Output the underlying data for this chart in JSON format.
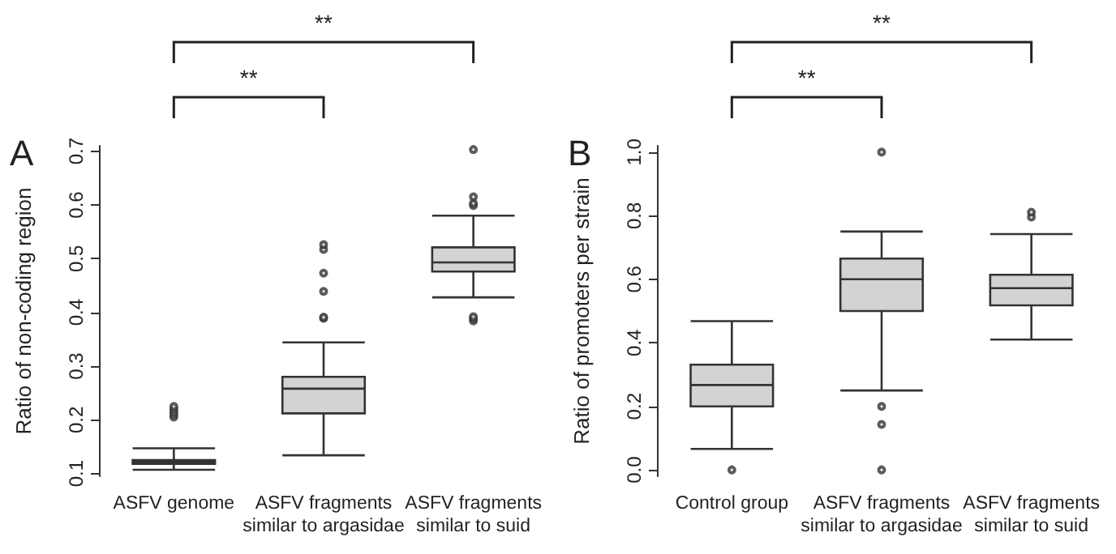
{
  "chart_data": [
    {
      "type": "box",
      "title": "A",
      "ylabel": "Ratio of non-coding region",
      "categories": [
        "ASFV genome",
        "ASFV fragments similar to argasidae",
        "ASFV fragments similar to suid"
      ],
      "color": "#d3d3d3",
      "boxes": [
        {
          "low": 0.107,
          "q1": 0.118,
          "median": 0.122,
          "q3": 0.125,
          "high": 0.147,
          "outliers": [
            0.205,
            0.21,
            0.215,
            0.22,
            0.225
          ]
        },
        {
          "low": 0.134,
          "q1": 0.212,
          "median": 0.258,
          "q3": 0.28,
          "high": 0.344,
          "outliers": [
            0.389,
            0.391,
            0.439,
            0.473,
            0.517,
            0.526
          ]
        },
        {
          "low": 0.428,
          "q1": 0.476,
          "median": 0.493,
          "q3": 0.521,
          "high": 0.58,
          "outliers": [
            0.384,
            0.388,
            0.392,
            0.599,
            0.603,
            0.615,
            0.703
          ]
        }
      ],
      "ylim": [
        0.095,
        0.71
      ],
      "yticks": [
        0.1,
        0.2,
        0.3,
        0.4,
        0.5,
        0.6,
        0.7
      ],
      "grid": false,
      "annotations": [
        "**",
        "**"
      ]
    },
    {
      "type": "box",
      "title": "B",
      "ylabel": "Ratio of promoters per strain",
      "categories": [
        "Control group",
        "ASFV fragments similar to argasidae",
        "ASFV fragments similar to suid"
      ],
      "color": "#d3d3d3",
      "boxes": [
        {
          "low": 0.066,
          "q1": 0.2,
          "median": 0.267,
          "q3": 0.331,
          "high": 0.468,
          "outliers": [
            0
          ]
        },
        {
          "low": 0.25,
          "q1": 0.5,
          "median": 0.6,
          "q3": 0.665,
          "high": 0.75,
          "outliers": [
            0,
            0.143,
            0.2,
            1.0
          ]
        },
        {
          "low": 0.41,
          "q1": 0.518,
          "median": 0.572,
          "q3": 0.614,
          "high": 0.742,
          "outliers": [
            0.796,
            0.811
          ]
        }
      ],
      "ylim": [
        -0.02,
        1.02
      ],
      "yticks": [
        {
          "value": 0,
          "label": "0.0"
        },
        0.2,
        0.4,
        0.6,
        0.8,
        {
          "value": 1,
          "label": "1.0"
        }
      ],
      "grid": false,
      "annotations": [
        "**",
        "**"
      ]
    }
  ]
}
